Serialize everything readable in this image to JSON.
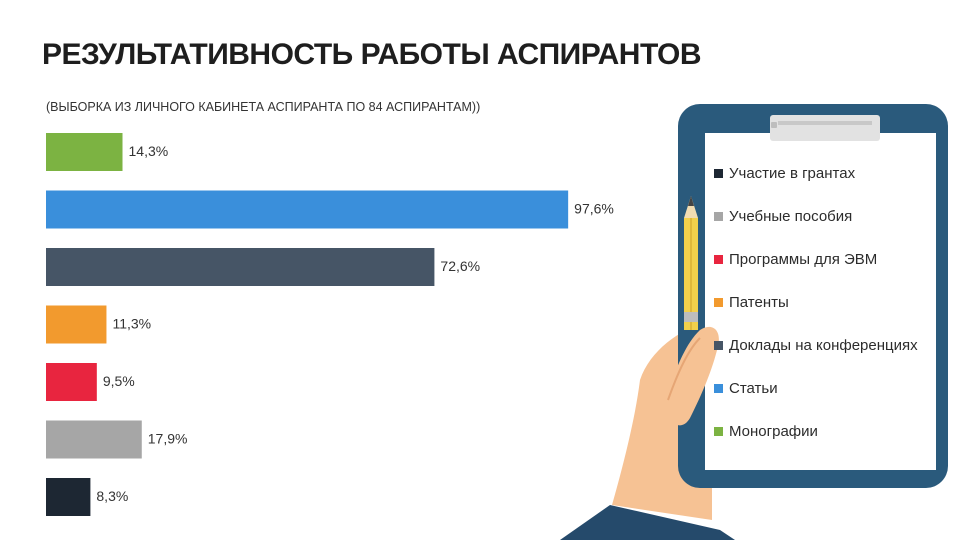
{
  "header": {
    "title": "РЕЗУЛЬТАТИВНОСТЬ РАБОТЫ АСПИРАНТОВ",
    "subtitle": "(ВЫБОРКА ИЗ ЛИЧНОГО КАБИНЕТА АСПИРАНТА ПО 84 АСПИРАНТАМ))"
  },
  "chart_data": {
    "type": "bar",
    "orientation": "horizontal",
    "categories": [
      "Монографии",
      "Статьи",
      "Доклады на конференциях",
      "Патенты",
      "Программы для ЭВМ",
      "Учебные пособия",
      "Участие в грантах"
    ],
    "values": [
      14.3,
      97.6,
      72.6,
      11.3,
      9.5,
      17.9,
      8.3
    ],
    "value_labels": [
      "14,3%",
      "97,6%",
      "72,6%",
      "11,3%",
      "9,5%",
      "17,9%",
      "8,3%"
    ],
    "colors": [
      "#7cb342",
      "#3a8fdb",
      "#465566",
      "#f29a2e",
      "#e8253f",
      "#a6a6a6",
      "#1d2733"
    ],
    "xlim": [
      0,
      100
    ],
    "legend": {
      "position": "right",
      "items": [
        {
          "label": "Участие в грантах",
          "color": "#1d2733"
        },
        {
          "label": "Учебные пособия",
          "color": "#a6a6a6"
        },
        {
          "label": "Программы для ЭВМ",
          "color": "#e8253f"
        },
        {
          "label": "Патенты",
          "color": "#f29a2e"
        },
        {
          "label": "Доклады на конференциях",
          "color": "#465566"
        },
        {
          "label": "Статьи",
          "color": "#3a8fdb"
        },
        {
          "label": "Монографии",
          "color": "#7cb342"
        }
      ]
    }
  },
  "illustration": {
    "icons": [
      "clipboard-icon",
      "pencil-icon",
      "hand-icon"
    ],
    "colors": {
      "clipboard": "#2a5a7c",
      "paper": "#ffffff",
      "clip": "#e2e2e2",
      "pencil": "#f2d04b",
      "skin": "#f6c294",
      "sleeve": "#254a6b"
    }
  }
}
